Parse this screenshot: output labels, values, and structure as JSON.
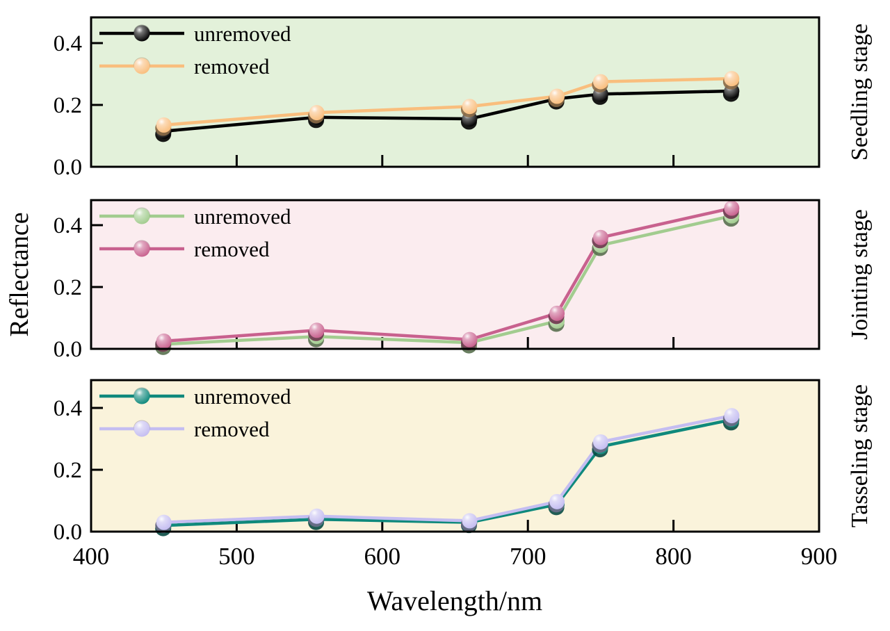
{
  "figure": {
    "xlabel": "Wavelength/nm",
    "ylabel": "Reflectance",
    "x_tick_labels": [
      "400",
      "500",
      "600",
      "700",
      "800",
      "900"
    ],
    "y_tick_labels": [
      "0.0",
      "0.2",
      "0.4"
    ]
  },
  "chart_data": [
    {
      "type": "line",
      "panel_label": "Seedling stage",
      "background": "#e3f1da",
      "x": [
        450,
        555,
        660,
        720,
        750,
        840
      ],
      "xlim": [
        400,
        900
      ],
      "ylim": [
        0,
        0.48
      ],
      "x_tick_values": [
        400,
        500,
        600,
        700,
        800,
        900
      ],
      "y_tick_values": [
        0,
        0.2,
        0.4
      ],
      "legend_position": "top-left",
      "grid": false,
      "series": [
        {
          "name": "unremoved",
          "color": "#000000",
          "values": [
            0.115,
            0.16,
            0.155,
            0.22,
            0.235,
            0.245
          ]
        },
        {
          "name": "removed",
          "color": "#f9be7d",
          "values": [
            0.135,
            0.175,
            0.195,
            0.228,
            0.275,
            0.285
          ]
        }
      ]
    },
    {
      "type": "line",
      "panel_label": "Jointing stage",
      "background": "#fbecef",
      "x": [
        450,
        555,
        660,
        720,
        750,
        840
      ],
      "xlim": [
        400,
        900
      ],
      "ylim": [
        0,
        0.48
      ],
      "x_tick_values": [
        400,
        500,
        600,
        700,
        800,
        900
      ],
      "y_tick_values": [
        0,
        0.2,
        0.4
      ],
      "legend_position": "top-left",
      "grid": false,
      "series": [
        {
          "name": "unremoved",
          "color": "#a2cc8f",
          "values": [
            0.015,
            0.04,
            0.02,
            0.09,
            0.335,
            0.43
          ]
        },
        {
          "name": "removed",
          "color": "#c8618e",
          "values": [
            0.025,
            0.06,
            0.03,
            0.115,
            0.36,
            0.455
          ]
        }
      ]
    },
    {
      "type": "line",
      "panel_label": "Tasseling stage",
      "background": "#faf3db",
      "x": [
        450,
        555,
        660,
        720,
        750,
        840
      ],
      "xlim": [
        400,
        900
      ],
      "ylim": [
        0,
        0.48
      ],
      "x_tick_values": [
        400,
        500,
        600,
        700,
        800,
        900
      ],
      "y_tick_values": [
        0,
        0.2,
        0.4
      ],
      "legend_position": "top-left",
      "grid": false,
      "series": [
        {
          "name": "unremoved",
          "color": "#0f897c",
          "values": [
            0.02,
            0.04,
            0.03,
            0.088,
            0.275,
            0.362
          ]
        },
        {
          "name": "removed",
          "color": "#c4bdf1",
          "values": [
            0.03,
            0.05,
            0.035,
            0.097,
            0.29,
            0.375
          ]
        }
      ]
    }
  ]
}
